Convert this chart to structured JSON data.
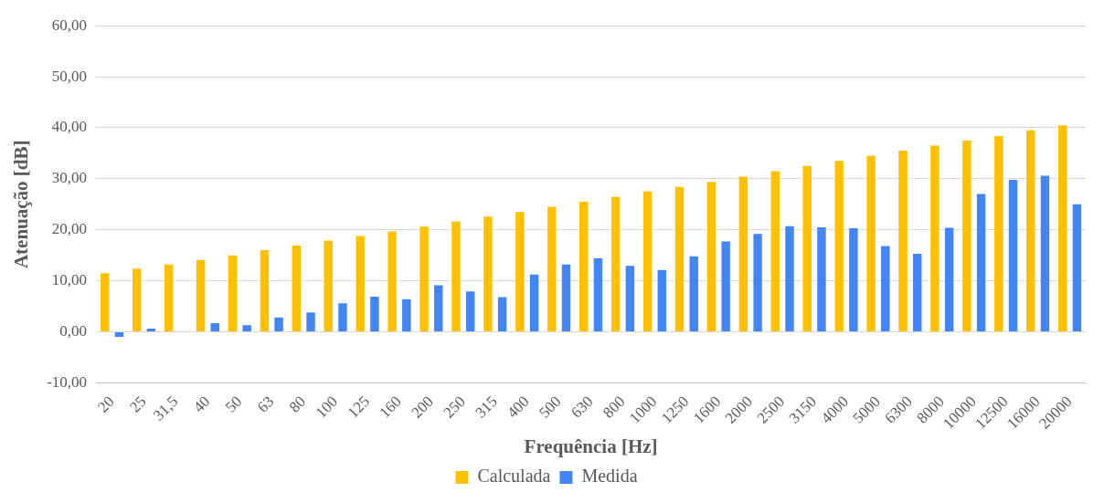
{
  "chart_data": {
    "type": "bar",
    "xlabel": "Frequência [Hz]",
    "ylabel": "Atenuação [dB]",
    "categories": [
      "20",
      "25",
      "31,5",
      "40",
      "50",
      "63",
      "80",
      "100",
      "125",
      "160",
      "200",
      "250",
      "315",
      "400",
      "500",
      "630",
      "800",
      "1000",
      "1250",
      "1600",
      "2000",
      "2500",
      "3150",
      "4000",
      "5000",
      "6300",
      "8000",
      "10000",
      "12500",
      "16000",
      "20000"
    ],
    "series": [
      {
        "name": "Calculada",
        "color": "#ffc000",
        "values": [
          11.5,
          12.4,
          13.2,
          14.1,
          15.0,
          16.0,
          16.9,
          17.9,
          18.8,
          19.7,
          20.6,
          21.6,
          22.6,
          23.5,
          24.5,
          25.5,
          26.5,
          27.5,
          28.4,
          29.4,
          30.4,
          31.5,
          32.5,
          33.5,
          34.5,
          35.5,
          36.5,
          37.5,
          38.4,
          39.5,
          40.5
        ]
      },
      {
        "name": "Medida",
        "color": "#4285f4",
        "values": [
          -1.0,
          0.6,
          0,
          1.7,
          1.3,
          2.8,
          3.8,
          5.6,
          6.9,
          6.4,
          9.1,
          7.9,
          6.8,
          11.2,
          13.2,
          14.4,
          12.9,
          12.1,
          14.8,
          17.7,
          19.2,
          20.7,
          20.5,
          20.3,
          16.8,
          15.3,
          20.4,
          27.0,
          29.8,
          30.6,
          25.0
        ]
      }
    ],
    "ylim": [
      -10,
      60
    ],
    "yticks": [
      {
        "value": -10,
        "label": "-10,00"
      },
      {
        "value": 0,
        "label": "0,00"
      },
      {
        "value": 10,
        "label": "10,00"
      },
      {
        "value": 20,
        "label": "20,00"
      },
      {
        "value": 30,
        "label": "30,00"
      },
      {
        "value": 40,
        "label": "40,00"
      },
      {
        "value": 50,
        "label": "50,00"
      },
      {
        "value": 60,
        "label": "60,00"
      }
    ],
    "grid": "y",
    "legend": "bottom"
  }
}
